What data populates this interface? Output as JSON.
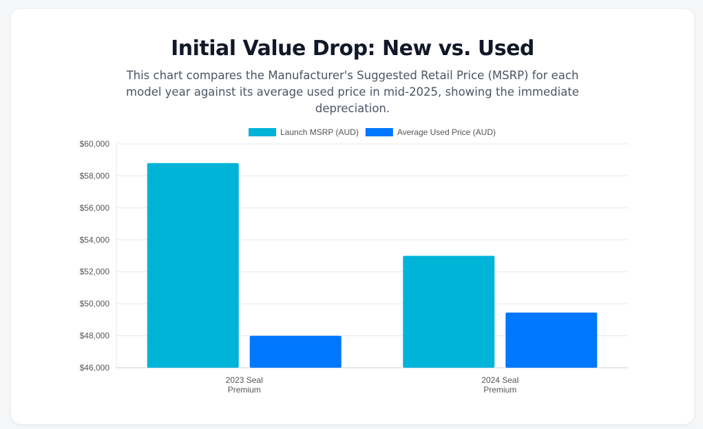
{
  "page": {
    "title": "Initial Value Drop: New vs. Used",
    "subtitle": "This chart compares the Manufacturer's Suggested Retail Price (MSRP) for each model year against its average used price in mid-2025, showing the immediate depreciation."
  },
  "chart_data": {
    "type": "bar",
    "categories": [
      [
        "2023 Seal",
        "Premium"
      ],
      [
        "2024 Seal",
        "Premium"
      ]
    ],
    "series": [
      {
        "name": "Launch MSRP (AUD)",
        "values": [
          58800,
          53000
        ],
        "color": "#00b4d8"
      },
      {
        "name": "Average Used Price (AUD)",
        "values": [
          48000,
          49450
        ],
        "color": "#0077ff"
      }
    ],
    "ylim": [
      46000,
      60000
    ],
    "yticks": [
      46000,
      48000,
      50000,
      52000,
      54000,
      56000,
      58000,
      60000
    ],
    "ytick_prefix": "$",
    "grid": true,
    "legend": "top"
  }
}
